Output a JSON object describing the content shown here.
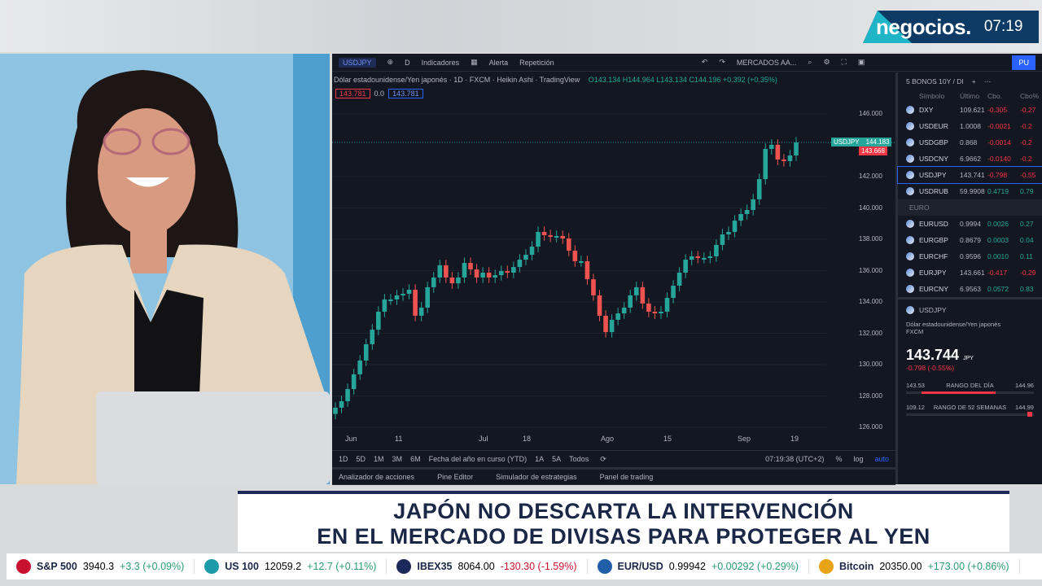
{
  "broadcast": {
    "brand": "negocios.",
    "clock": "07:19",
    "headline_line1": "JAPÓN NO DESCARTA LA INTERVENCIÓN",
    "headline_line2": "EN EL MERCADO DE DIVISAS PARA PROTEGER AL YEN",
    "accent": "#0e3a66",
    "accent2": "#1fb4c6"
  },
  "toolbar": {
    "symbol": "USDJPY",
    "interval": "D",
    "indicators": "Indicadores",
    "alert": "Alerta",
    "replay": "Repetición",
    "layout": "MERCADOS AA...",
    "publish": "PU"
  },
  "legend": {
    "title": "Dólar estadounidense/Yen japonés",
    "interval": "1D",
    "source": "FXCM",
    "style": "Heikin Ashi",
    "provider": "TradingView",
    "ohlc": "O143.134 H144.964 L143.134 C144.196 +0.392 (+0.35%)",
    "sell": "143.781",
    "spread": "0.0",
    "buy": "143.781"
  },
  "chart_data": {
    "type": "candlestick",
    "symbol": "USDJPY",
    "currency": "JPY",
    "ylim": [
      125,
      147
    ],
    "y_ticks": [
      "146.000",
      "142.000",
      "140.000",
      "138.000",
      "136.000",
      "134.000",
      "132.000",
      "130.000",
      "128.000",
      "126.000"
    ],
    "x_ticks": [
      "Jun",
      "11",
      "Jul",
      "18",
      "Ago",
      "15",
      "Sep",
      "19"
    ],
    "last_price_label": "144.183",
    "last_price_tag": "USDJPY",
    "prev_price_label": "143.668",
    "closes": [
      127.25,
      127.66,
      128.44,
      129.38,
      130.26,
      131.3,
      132.23,
      133.38,
      134.16,
      134.16,
      134.42,
      134.52,
      134.78,
      133.12,
      133.64,
      134.94,
      135.56,
      136.34,
      135.56,
      135.19,
      135.56,
      136.49,
      136.08,
      135.56,
      135.87,
      135.56,
      135.71,
      135.97,
      135.87,
      136.23,
      136.7,
      137.01,
      137.53,
      138.47,
      138.26,
      138.16,
      138.21,
      138.05,
      137.27,
      136.6,
      136.6,
      135.45,
      134.42,
      133.12,
      132.08,
      132.86,
      133.27,
      133.64,
      134.42,
      134.94,
      133.9,
      133.38,
      133.27,
      133.38,
      134.26,
      135.04,
      135.87,
      136.7,
      136.91,
      136.81,
      136.81,
      136.91,
      137.64,
      138.31,
      138.47,
      139.19,
      139.61,
      139.87,
      140.55,
      141.84,
      143.77,
      144.03,
      143.09,
      142.99,
      143.35,
      144.18
    ],
    "up_color": "#26a69a",
    "down_color": "#ef5350"
  },
  "ranges": [
    "1D",
    "5D",
    "1M",
    "3M",
    "6M",
    "Fecha del año en curso (YTD)",
    "1A",
    "5A",
    "Todos"
  ],
  "status": {
    "time": "07:19:38 (UTC+2)",
    "pct": "%",
    "log": "log",
    "auto": "auto"
  },
  "bottom_tabs": [
    "Analizador de acciones",
    "Pine Editor",
    "Simulador de estrategias",
    "Panel de trading"
  ],
  "watchlist": {
    "name": "5 BONOS 10Y / DI",
    "headers": [
      "Símbolo",
      "Último",
      "Cbo.",
      "Cbo%"
    ],
    "rows": [
      [
        "DXY",
        "109.621",
        "-0.305",
        "-0.27"
      ],
      [
        "USDEUR",
        "1.0008",
        "-0.0021",
        "-0.2"
      ],
      [
        "USDGBP",
        "0.868",
        "-0.0014",
        "-0.2"
      ],
      [
        "USDCNY",
        "6.9662",
        "-0.0140",
        "-0.2"
      ],
      [
        "USDJPY",
        "143.741",
        "-0.798",
        "-0.55"
      ],
      [
        "USDRUB",
        "59.9908",
        "0.4719",
        "0.79"
      ]
    ],
    "section": "EURO",
    "rows2": [
      [
        "EURUSD",
        "0.9994",
        "0.0026",
        "0.27"
      ],
      [
        "EURGBP",
        "0.8679",
        "0.0003",
        "0.04"
      ],
      [
        "EURCHF",
        "0.9596",
        "0.0010",
        "0.11"
      ],
      [
        "EURJPY",
        "143.661",
        "-0.417",
        "-0.29"
      ],
      [
        "EURCNY",
        "6.9563",
        "0.0572",
        "0.83"
      ]
    ]
  },
  "detail": {
    "symbol": "USDJPY",
    "name": "Dólar estadounidense/Yen japonés",
    "source": "FXCM",
    "price": "143.744",
    "unit": "JPY",
    "change": "-0.798 (-0.55%)",
    "day_low": "143.53",
    "day_label": "RANGO DEL DÍA",
    "day_high": "144.96",
    "day_fill": 0.7,
    "y_low": "109.12",
    "y_label": "RANGO DE 52 SEMANAS",
    "y_high": "144.99",
    "y_pos": 0.99
  },
  "ticker": [
    {
      "name": "S&P 500",
      "value": "3940.3",
      "change": "+3.3 (+0.09%)",
      "dir": "up",
      "color": "#c8102e"
    },
    {
      "name": "US 100",
      "value": "12059.2",
      "change": "+12.7 (+0.11%)",
      "dir": "up",
      "color": "#1b9aaa"
    },
    {
      "name": "IBEX35",
      "value": "8064.00",
      "change": "-130.30 (-1.59%)",
      "dir": "down",
      "color": "#1c2a5a"
    },
    {
      "name": "EUR/USD",
      "value": "0.99942",
      "change": "+0.00292 (+0.29%)",
      "dir": "up",
      "color": "#1f5fa8"
    },
    {
      "name": "Bitcoin",
      "value": "20350.00",
      "change": "+173.00 (+0.86%)",
      "dir": "up",
      "color": "#e8a317"
    }
  ]
}
